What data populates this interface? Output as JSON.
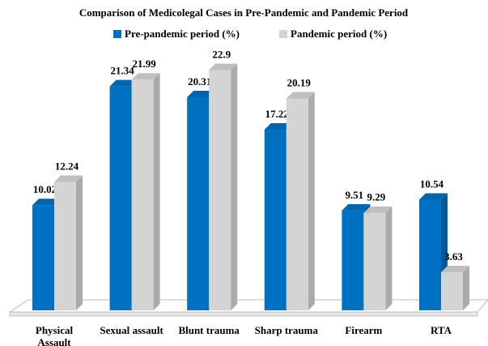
{
  "chart_data": {
    "type": "bar3d",
    "title": "Comparison of Medicolegal Cases in Pre-Pandemic and Pandemic Period",
    "categories": [
      "Physical Assault",
      "Sexual assault",
      "Blunt trauma",
      "Sharp trauma",
      "Firearm",
      "RTA"
    ],
    "series": [
      {
        "name": "Pre-pandemic period (%)",
        "color": "#0070c0",
        "values": [
          10.02,
          21.34,
          20.31,
          17.22,
          9.51,
          10.54
        ]
      },
      {
        "name": "Pandemic period (%)",
        "color": "#d4d4d4",
        "values": [
          12.24,
          21.99,
          22.9,
          20.19,
          9.29,
          3.63
        ]
      }
    ],
    "legend": "top"
  }
}
